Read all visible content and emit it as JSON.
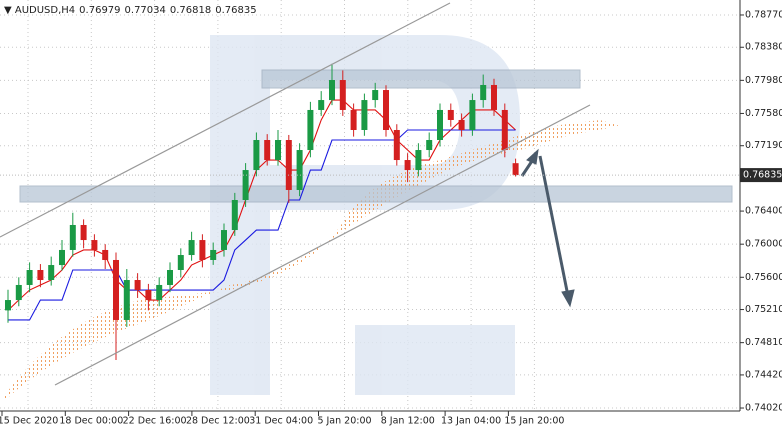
{
  "chart_data": {
    "type": "candlestick",
    "symbol": "AUDUSD,H4",
    "up_color": "#1a9a45",
    "down_color": "#d42020",
    "ylim": [
      0.73984,
      0.78951
    ],
    "yticks": [
      {
        "value": 0.7877,
        "label": "0.78770"
      },
      {
        "value": 0.7838,
        "label": "0.78380"
      },
      {
        "value": 0.7798,
        "label": "0.77980"
      },
      {
        "value": 0.7758,
        "label": "0.77580"
      },
      {
        "value": 0.7719,
        "label": "0.77190"
      },
      {
        "value": 0.764,
        "label": "0.76400"
      },
      {
        "value": 0.76,
        "label": "0.76000"
      },
      {
        "value": 0.756,
        "label": "0.75600"
      },
      {
        "value": 0.7521,
        "label": "0.75210"
      },
      {
        "value": 0.7481,
        "label": "0.74810"
      },
      {
        "value": 0.7442,
        "label": "0.74420"
      },
      {
        "value": 0.7402,
        "label": "0.74020"
      }
    ],
    "x_labels": [
      "15 Dec 2020",
      "18 Dec 00:00",
      "22 Dec 16:00",
      "28 Dec 12:00",
      "31 Dec 04:00",
      "5 Jan 20:00",
      "8 Jan 12:00",
      "13 Jan 04:00",
      "15 Jan 20:00"
    ],
    "grid": true,
    "ohlc": [
      [
        0.752,
        0.7545,
        0.7505,
        0.75325
      ],
      [
        0.75325,
        0.756,
        0.7525,
        0.75507
      ],
      [
        0.75507,
        0.7578,
        0.7542,
        0.75688
      ],
      [
        0.75688,
        0.7576,
        0.7548,
        0.75567
      ],
      [
        0.75567,
        0.7585,
        0.755,
        0.75748
      ],
      [
        0.75748,
        0.7605,
        0.7568,
        0.7593
      ],
      [
        0.7593,
        0.7638,
        0.7585,
        0.76232
      ],
      [
        0.76232,
        0.763,
        0.7595,
        0.7605
      ],
      [
        0.7605,
        0.7612,
        0.7585,
        0.7593
      ],
      [
        0.7593,
        0.76,
        0.757,
        0.75809
      ],
      [
        0.75809,
        0.759,
        0.746,
        0.75084
      ],
      [
        0.75084,
        0.757,
        0.75,
        0.75567
      ],
      [
        0.75567,
        0.7565,
        0.7535,
        0.75446
      ],
      [
        0.75446,
        0.7552,
        0.752,
        0.75325
      ],
      [
        0.75325,
        0.756,
        0.7525,
        0.75507
      ],
      [
        0.75507,
        0.7578,
        0.7542,
        0.75688
      ],
      [
        0.75688,
        0.7595,
        0.756,
        0.75869
      ],
      [
        0.75869,
        0.7615,
        0.758,
        0.7605
      ],
      [
        0.7605,
        0.7612,
        0.7572,
        0.75809
      ],
      [
        0.75809,
        0.7602,
        0.7575,
        0.7593
      ],
      [
        0.7593,
        0.7625,
        0.7585,
        0.76171
      ],
      [
        0.76171,
        0.7662,
        0.761,
        0.76534
      ],
      [
        0.76534,
        0.7698,
        0.7645,
        0.76896
      ],
      [
        0.76896,
        0.7735,
        0.7682,
        0.77259
      ],
      [
        0.77259,
        0.7733,
        0.7695,
        0.77017
      ],
      [
        0.77017,
        0.7738,
        0.7695,
        0.77259
      ],
      [
        0.77259,
        0.7732,
        0.765,
        0.76655
      ],
      [
        0.76655,
        0.7722,
        0.7658,
        0.77138
      ],
      [
        0.77138,
        0.7772,
        0.7705,
        0.77622
      ],
      [
        0.77622,
        0.7785,
        0.7755,
        0.77742
      ],
      [
        0.77742,
        0.7818,
        0.7768,
        0.77984
      ],
      [
        0.77984,
        0.781,
        0.7755,
        0.77622
      ],
      [
        0.77622,
        0.777,
        0.773,
        0.7738
      ],
      [
        0.7738,
        0.7782,
        0.7731,
        0.77742
      ],
      [
        0.77742,
        0.7795,
        0.7765,
        0.77863
      ],
      [
        0.77863,
        0.7792,
        0.773,
        0.7738
      ],
      [
        0.7738,
        0.7745,
        0.7695,
        0.77017
      ],
      [
        0.77017,
        0.771,
        0.7675,
        0.76896
      ],
      [
        0.76896,
        0.7722,
        0.7682,
        0.77138
      ],
      [
        0.77138,
        0.7735,
        0.7705,
        0.77259
      ],
      [
        0.77259,
        0.777,
        0.7718,
        0.77622
      ],
      [
        0.77622,
        0.777,
        0.7742,
        0.77501
      ],
      [
        0.77501,
        0.7758,
        0.773,
        0.7738
      ],
      [
        0.7738,
        0.7782,
        0.7731,
        0.77742
      ],
      [
        0.77742,
        0.7805,
        0.7765,
        0.77924
      ],
      [
        0.77924,
        0.78,
        0.7755,
        0.77622
      ],
      [
        0.77622,
        0.777,
        0.7705,
        0.77138
      ],
      [
        0.76979,
        0.77034,
        0.76818,
        0.76835
      ]
    ],
    "series": [
      {
        "color": "#e01010",
        "values": [
          0.752,
          0.75325,
          0.75446,
          0.75507,
          0.75567,
          0.75688,
          0.75869,
          0.7593,
          0.7593,
          0.75869,
          0.75567,
          0.75446,
          0.75446,
          0.75325,
          0.75325,
          0.75446,
          0.75567,
          0.75748,
          0.75809,
          0.75869,
          0.7593,
          0.76171,
          0.76534,
          0.76896,
          0.77017,
          0.77017,
          0.76896,
          0.76896,
          0.77138,
          0.77501,
          0.77742,
          0.77742,
          0.77622,
          0.77622,
          0.77622,
          0.77501,
          0.77259,
          0.77138,
          0.77017,
          0.77017,
          0.77259,
          0.7738,
          0.77501,
          0.77622,
          0.77622,
          0.77622,
          0.77501,
          0.7738
        ]
      },
      {
        "color": "#1a1ae0",
        "values": [
          0.75084,
          0.75084,
          0.75084,
          0.75325,
          0.75325,
          0.75325,
          0.75688,
          0.75688,
          0.75688,
          0.75688,
          0.75688,
          0.75446,
          0.75446,
          0.75446,
          0.75446,
          0.75446,
          0.75446,
          0.75446,
          0.75446,
          0.75446,
          0.75567,
          0.7593,
          0.7605,
          0.76171,
          0.76171,
          0.76171,
          0.76534,
          0.76534,
          0.76896,
          0.76896,
          0.77259,
          0.77259,
          0.77259,
          0.77259,
          0.77259,
          0.77259,
          0.77259,
          0.7738,
          0.7738,
          0.7738,
          0.7738,
          0.7738,
          0.7738,
          0.7738,
          0.7738,
          0.7738,
          0.7738,
          0.7738
        ]
      }
    ]
  }
}
